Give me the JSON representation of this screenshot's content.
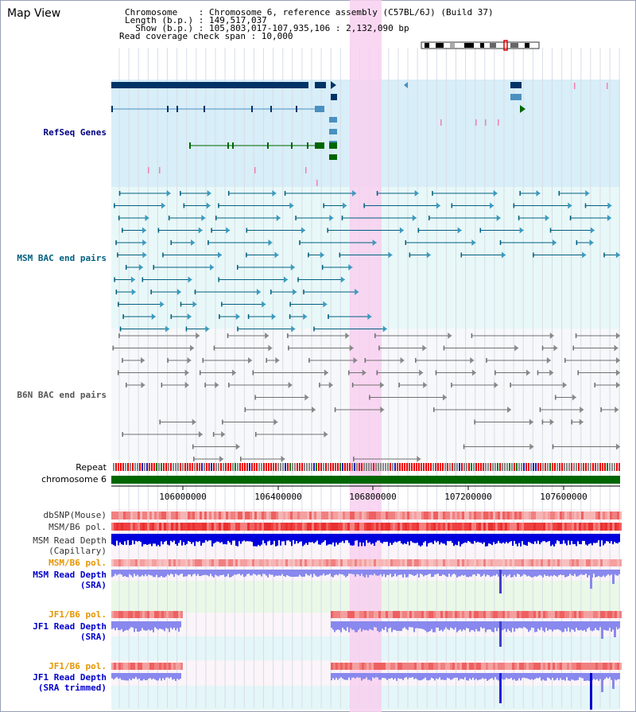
{
  "title": "Map View",
  "info": {
    "chromosome_line": "Chromosome    : Chromosome 6, reference assembly (C57BL/6J) (Build 37)",
    "length_line": "Length (b.p.) : 149,517,037",
    "show_line": "  Show (b.p.) : 105,803,017-107,935,106 : 2,132,090 bp",
    "span_line": "Read coverage check span : 10,000"
  },
  "tracks": {
    "refseq": "RefSeq Genes",
    "msm_bac": "MSM BAC end pairs",
    "b6n_bac": "B6N BAC end pairs",
    "repeat": "Repeat",
    "chromosome": "chromosome 6",
    "dbsnp": "dbSNP(Mouse)",
    "msm_b6_pol": "MSM/B6 pol.",
    "msm_depth_cap_1": "MSM Read Depth",
    "msm_depth_cap_2": "(Capillary)",
    "msm_b6_pol_2": "MSM/B6 pol.",
    "msm_depth_sra_1": "MSM Read Depth",
    "msm_depth_sra_2": "(SRA)",
    "jf1_b6_pol": "JF1/B6 pol.",
    "jf1_depth_sra_1": "JF1 Read Depth",
    "jf1_depth_sra_2": "(SRA)",
    "jf1_b6_pol_2": "JF1/B6 pol.",
    "jf1_depth_trim_1": "JF1 Read Depth",
    "jf1_depth_trim_2": "(SRA trimmed)"
  },
  "axis": {
    "ticks": [
      "106000000",
      "106400000",
      "106800000",
      "107200000",
      "107600000"
    ]
  },
  "colors": {
    "refseq_bg": "#d8eef8",
    "bac_bg": "#e8f8f8",
    "highlight": "#f8d0f0",
    "gene_dark": "#003366",
    "gene_mid": "#4a90c0",
    "gene_green": "#006600",
    "msm_pair": "#006080",
    "b6n_pair": "#707070",
    "chromosome": "#006600",
    "depth_msm": "#0000dd",
    "depth_sra": "#8888ee",
    "label_navy": "#000080",
    "label_teal": "#006080",
    "label_orange": "#e69500",
    "label_blue": "#0000cc"
  }
}
